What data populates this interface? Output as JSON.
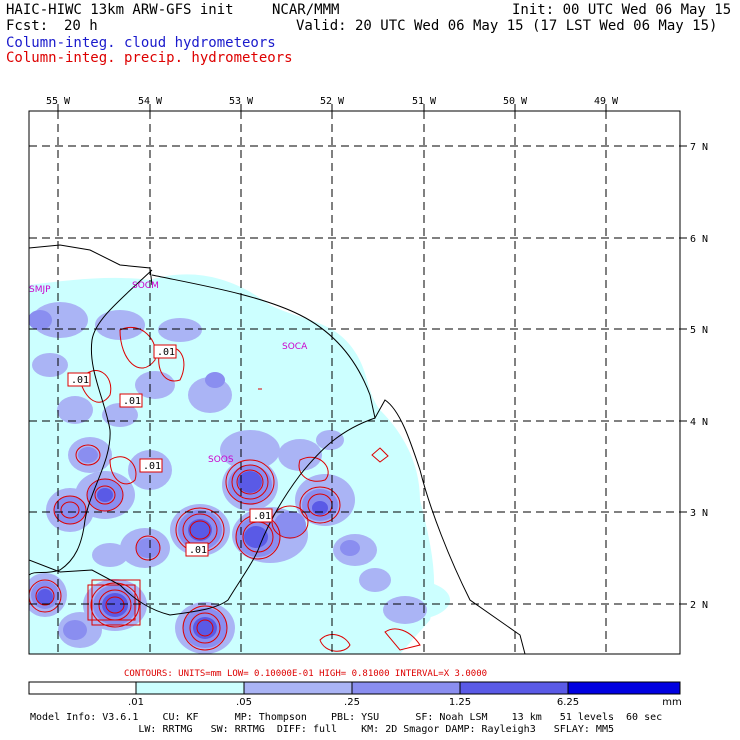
{
  "header": {
    "title_left": "HAIC-HIWC 13km ARW-GFS init",
    "title_center": "NCAR/MMM",
    "init_label": "Init: 00 UTC Wed 06 May 15",
    "fcst_label": "Fcst:",
    "fcst_value": "20 h",
    "valid_label": "Valid: 20 UTC Wed 06 May 15 (17 LST Wed 06 May 15)",
    "field1": "Column-integ. cloud hydrometeors",
    "field2": "Column-integ. precip. hydrometeors"
  },
  "colors": {
    "field1": "#1a1acc",
    "field2": "#dd0000",
    "station": "#cc00cc",
    "fill_levels": [
      "#ccffff",
      "#aab4f5",
      "#8a8ef0",
      "#5a5ae6",
      "#0000e0"
    ]
  },
  "map": {
    "lon_labels": [
      "55 W",
      "54 W",
      "53 W",
      "52 W",
      "51 W",
      "50 W",
      "49 W"
    ],
    "lat_labels": [
      "7 N",
      "6 N",
      "5 N",
      "4 N",
      "3 N",
      "2 N"
    ],
    "stations": [
      "SMJP",
      "SOCM",
      "SOCA",
      "SOOS"
    ],
    "contour_labels": [
      ".01",
      ".01",
      ".01",
      ".01",
      ".01",
      ".01"
    ]
  },
  "contour_caption": "CONTOURS:  UNITS=mm  LOW= 0.10000E-01  HIGH= 0.81000      INTERVAL=X  3.0000",
  "colorbar": {
    "levels": [
      ".01",
      ".05",
      ".25",
      "1.25",
      "6.25"
    ],
    "units": "mm"
  },
  "model_info": {
    "line1": "Model Info: V3.6.1    CU: KF      MP: Thompson    PBL: YSU      SF: Noah LSM    13 km   51 levels  60 sec",
    "line2": "                  LW: RRTMG   SW: RRTMG  DIFF: full    KM: 2D Smagor DAMP: Rayleigh3   SFLAY: MM5"
  }
}
